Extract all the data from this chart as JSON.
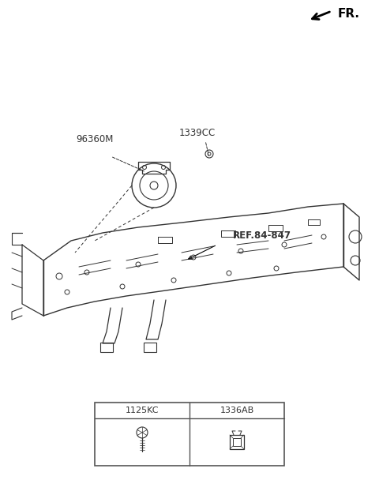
{
  "bg_color": "#ffffff",
  "fig_width": 4.8,
  "fig_height": 6.36,
  "dpi": 100,
  "labels": {
    "fr_label": "FR.",
    "part1_code": "1339CC",
    "part2_code": "96360M",
    "ref_label": "REF.84-847",
    "table_left_code": "1125KC",
    "table_right_code": "1336AB"
  },
  "colors": {
    "line_color": "#333333",
    "text_color": "#333333",
    "border_color": "#555555",
    "bg": "#ffffff"
  }
}
